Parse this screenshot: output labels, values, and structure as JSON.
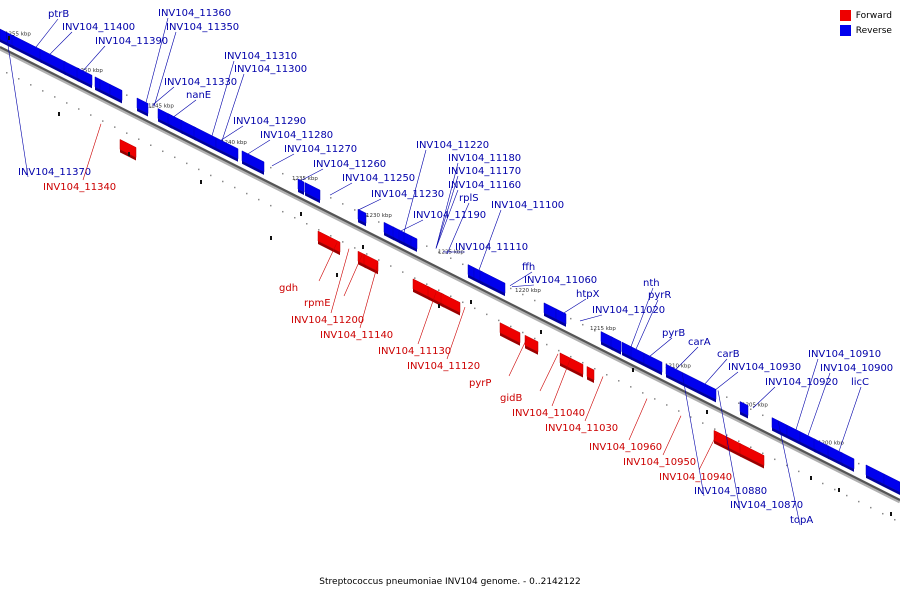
{
  "caption": "Streptococcus pneumoniae INV104 genome. - 0..2142122",
  "legend": {
    "forward_label": "Forward",
    "reverse_label": "Reverse",
    "forward_color": "#ee0000",
    "reverse_color": "#0000ee"
  },
  "scale_ticks": [
    "1255 kbp",
    "1250 kbp",
    "1245 kbp",
    "1240 kbp",
    "1235 kbp",
    "1230 kbp",
    "1225 kbp",
    "1220 kbp",
    "1215 kbp",
    "1210 kbp",
    "1205 kbp",
    "1200 kbp"
  ],
  "genes": [
    {
      "name": "ptrB",
      "strand": "reverse"
    },
    {
      "name": "INV104_11400",
      "strand": "reverse"
    },
    {
      "name": "INV104_11390",
      "strand": "reverse"
    },
    {
      "name": "INV104_11360",
      "strand": "reverse"
    },
    {
      "name": "INV104_11350",
      "strand": "reverse"
    },
    {
      "name": "INV104_11370",
      "strand": "reverse"
    },
    {
      "name": "INV104_11340",
      "strand": "forward"
    },
    {
      "name": "INV104_11330",
      "strand": "reverse"
    },
    {
      "name": "nanE",
      "strand": "reverse"
    },
    {
      "name": "INV104_11310",
      "strand": "reverse"
    },
    {
      "name": "INV104_11300",
      "strand": "reverse"
    },
    {
      "name": "INV104_11290",
      "strand": "reverse"
    },
    {
      "name": "INV104_11280",
      "strand": "reverse"
    },
    {
      "name": "INV104_11270",
      "strand": "reverse"
    },
    {
      "name": "INV104_11260",
      "strand": "reverse"
    },
    {
      "name": "INV104_11250",
      "strand": "reverse"
    },
    {
      "name": "INV104_11230",
      "strand": "reverse"
    },
    {
      "name": "INV104_11220",
      "strand": "reverse"
    },
    {
      "name": "INV104_11180",
      "strand": "reverse"
    },
    {
      "name": "INV104_11170",
      "strand": "reverse"
    },
    {
      "name": "INV104_11160",
      "strand": "reverse"
    },
    {
      "name": "rplS",
      "strand": "reverse"
    },
    {
      "name": "INV104_11190",
      "strand": "reverse"
    },
    {
      "name": "INV104_11100",
      "strand": "reverse"
    },
    {
      "name": "INV104_11110",
      "strand": "reverse"
    },
    {
      "name": "ffh",
      "strand": "reverse"
    },
    {
      "name": "INV104_11060",
      "strand": "reverse"
    },
    {
      "name": "htpX",
      "strand": "reverse"
    },
    {
      "name": "gdh",
      "strand": "forward"
    },
    {
      "name": "rpmE",
      "strand": "forward"
    },
    {
      "name": "INV104_11200",
      "strand": "forward"
    },
    {
      "name": "INV104_11140",
      "strand": "forward"
    },
    {
      "name": "INV104_11130",
      "strand": "forward"
    },
    {
      "name": "INV104_11120",
      "strand": "forward"
    },
    {
      "name": "pyrP",
      "strand": "forward"
    },
    {
      "name": "gidB",
      "strand": "forward"
    },
    {
      "name": "INV104_11040",
      "strand": "forward"
    },
    {
      "name": "INV104_11030",
      "strand": "forward"
    },
    {
      "name": "nth",
      "strand": "reverse"
    },
    {
      "name": "pyrR",
      "strand": "reverse"
    },
    {
      "name": "INV104_11020",
      "strand": "reverse"
    },
    {
      "name": "pyrB",
      "strand": "reverse"
    },
    {
      "name": "carA",
      "strand": "reverse"
    },
    {
      "name": "carB",
      "strand": "reverse"
    },
    {
      "name": "INV104_10930",
      "strand": "reverse"
    },
    {
      "name": "INV104_10920",
      "strand": "reverse"
    },
    {
      "name": "INV104_10910",
      "strand": "reverse"
    },
    {
      "name": "INV104_10900",
      "strand": "reverse"
    },
    {
      "name": "licC",
      "strand": "reverse"
    },
    {
      "name": "INV104_10960",
      "strand": "forward"
    },
    {
      "name": "INV104_10950",
      "strand": "forward"
    },
    {
      "name": "INV104_10940",
      "strand": "forward"
    },
    {
      "name": "INV104_10880",
      "strand": "reverse"
    },
    {
      "name": "INV104_10870",
      "strand": "reverse"
    },
    {
      "name": "topA",
      "strand": "reverse"
    }
  ]
}
